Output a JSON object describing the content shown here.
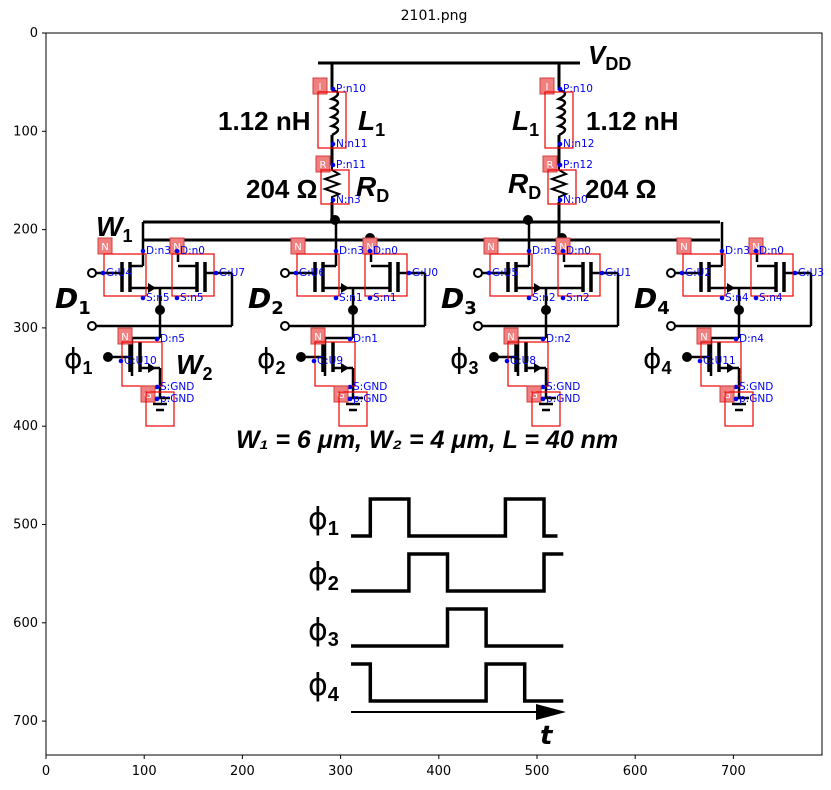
{
  "title": "2101.png",
  "x_ticks": [
    "0",
    "100",
    "200",
    "300",
    "400",
    "500",
    "600",
    "700"
  ],
  "y_ticks": [
    "0",
    "100",
    "200",
    "300",
    "400",
    "500",
    "600",
    "700"
  ],
  "circuit": {
    "vdd": "V",
    "vdd_sub": "DD",
    "inductance": "1.12 nH",
    "inductor": "L",
    "inductor_sub": "1",
    "resistance": "204 Ω",
    "resistor": "R",
    "resistor_sub": "D",
    "w1": "W",
    "w1_sub": "1",
    "w2": "W",
    "w2_sub": "2",
    "d_labels": [
      {
        "main": "D",
        "sub": "1"
      },
      {
        "main": "D",
        "sub": "2"
      },
      {
        "main": "D",
        "sub": "3"
      },
      {
        "main": "D",
        "sub": "4"
      }
    ],
    "phi_labels": [
      {
        "main": "ϕ",
        "sub": "1"
      },
      {
        "main": "ϕ",
        "sub": "2"
      },
      {
        "main": "ϕ",
        "sub": "3"
      },
      {
        "main": "ϕ",
        "sub": "4"
      }
    ],
    "dimensions": "W₁ = 6 μm, W₂ = 4 μm,  L = 40 nm"
  },
  "annotations": {
    "tags": {
      "inductor": "I",
      "resistor": "R",
      "nmos": "N",
      "ground": "G"
    },
    "left_L": [
      "P:n10",
      "N:n11"
    ],
    "right_L": [
      "P:n10",
      "N:n12"
    ],
    "left_R": [
      "P:n11",
      "N:n3"
    ],
    "right_R": [
      "P:n12",
      "N:n0"
    ],
    "stages": [
      {
        "d1": "D:n3",
        "g1": "G:U4",
        "s1": "S:n5",
        "d2": "D:n0",
        "g2": "G:U7",
        "s2": "S:n5",
        "dlow": "D:n5",
        "glow": "G:U10"
      },
      {
        "d1": "D:n3",
        "g1": "G:U6",
        "s1": "S:n1",
        "d2": "D:n0",
        "g2": "G:U0",
        "s2": "S:n1",
        "dlow": "D:n1",
        "glow": "G:U9"
      },
      {
        "d1": "D:n3",
        "g1": "G:U5",
        "s1": "S:n2",
        "d2": "D:n0",
        "g2": "G:U1",
        "s2": "S:n2",
        "dlow": "D:n2",
        "glow": "G:U8"
      },
      {
        "d1": "D:n3",
        "g1": "G:U2",
        "s1": "S:n4",
        "d2": "D:n0",
        "g2": "G:U3",
        "s2": "S:n4",
        "dlow": "D:n4",
        "glow": "G:U11"
      }
    ],
    "sgnd": "S:GND",
    "pgnd": "p:GND"
  },
  "timing": {
    "labels": [
      {
        "main": "ϕ",
        "sub": "1"
      },
      {
        "main": "ϕ",
        "sub": "2"
      },
      {
        "main": "ϕ",
        "sub": "3"
      },
      {
        "main": "ϕ",
        "sub": "4"
      }
    ],
    "time_label": "t",
    "waveforms": [
      [
        [
          0,
          0
        ],
        [
          0.1,
          0
        ],
        [
          0.1,
          1
        ],
        [
          0.3,
          1
        ],
        [
          0.3,
          0
        ],
        [
          0.8,
          0
        ],
        [
          0.8,
          1
        ],
        [
          1.0,
          1
        ],
        [
          1.0,
          0
        ],
        [
          1.07,
          0
        ]
      ],
      [
        [
          0,
          0
        ],
        [
          0.3,
          0
        ],
        [
          0.3,
          1
        ],
        [
          0.5,
          1
        ],
        [
          0.5,
          0
        ],
        [
          1.0,
          0
        ],
        [
          1.0,
          1
        ],
        [
          1.1,
          1
        ]
      ],
      [
        [
          0,
          0
        ],
        [
          0.5,
          0
        ],
        [
          0.5,
          1
        ],
        [
          0.7,
          1
        ],
        [
          0.7,
          0
        ],
        [
          1.1,
          0
        ]
      ],
      [
        [
          0,
          1
        ],
        [
          0.1,
          1
        ],
        [
          0.1,
          0
        ],
        [
          0.7,
          0
        ],
        [
          0.7,
          1
        ],
        [
          0.9,
          1
        ],
        [
          0.9,
          0
        ],
        [
          1.1,
          0
        ]
      ]
    ]
  }
}
